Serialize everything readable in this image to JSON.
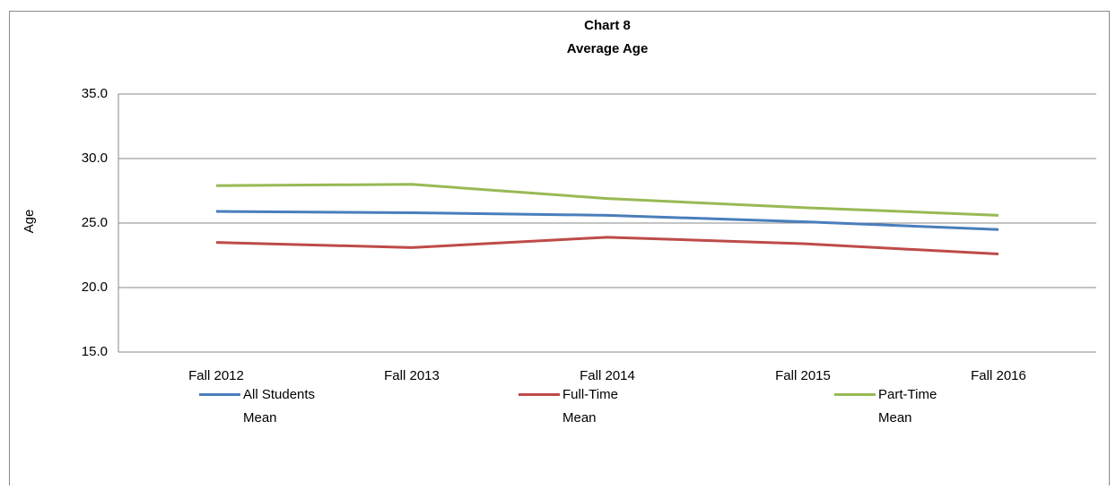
{
  "chart_data": {
    "type": "line",
    "title": "Chart 8",
    "subtitle": "Average Age",
    "y_label": "Age",
    "categories": [
      "Fall 2012",
      "Fall 2013",
      "Fall 2014",
      "Fall 2015",
      "Fall 2016"
    ],
    "series": [
      {
        "name": "All Students Mean",
        "color": "#4a7ebb",
        "values": [
          25.9,
          25.8,
          25.6,
          25.1,
          24.5
        ]
      },
      {
        "name": "Full-Time Mean",
        "color": "#be4b48",
        "values": [
          23.5,
          23.1,
          23.9,
          23.4,
          22.6
        ]
      },
      {
        "name": "Part-Time Mean",
        "color": "#98b954",
        "values": [
          27.9,
          28.0,
          26.9,
          26.2,
          25.6
        ]
      }
    ],
    "ylim": [
      15,
      35
    ],
    "yticks": [
      {
        "value": 15,
        "label": "15.0"
      },
      {
        "value": 20,
        "label": "20.0"
      },
      {
        "value": 25,
        "label": "25.0"
      },
      {
        "value": 30,
        "label": "30.0"
      },
      {
        "value": 35,
        "label": "35.0"
      }
    ],
    "grid": true,
    "legend": "bottom"
  }
}
